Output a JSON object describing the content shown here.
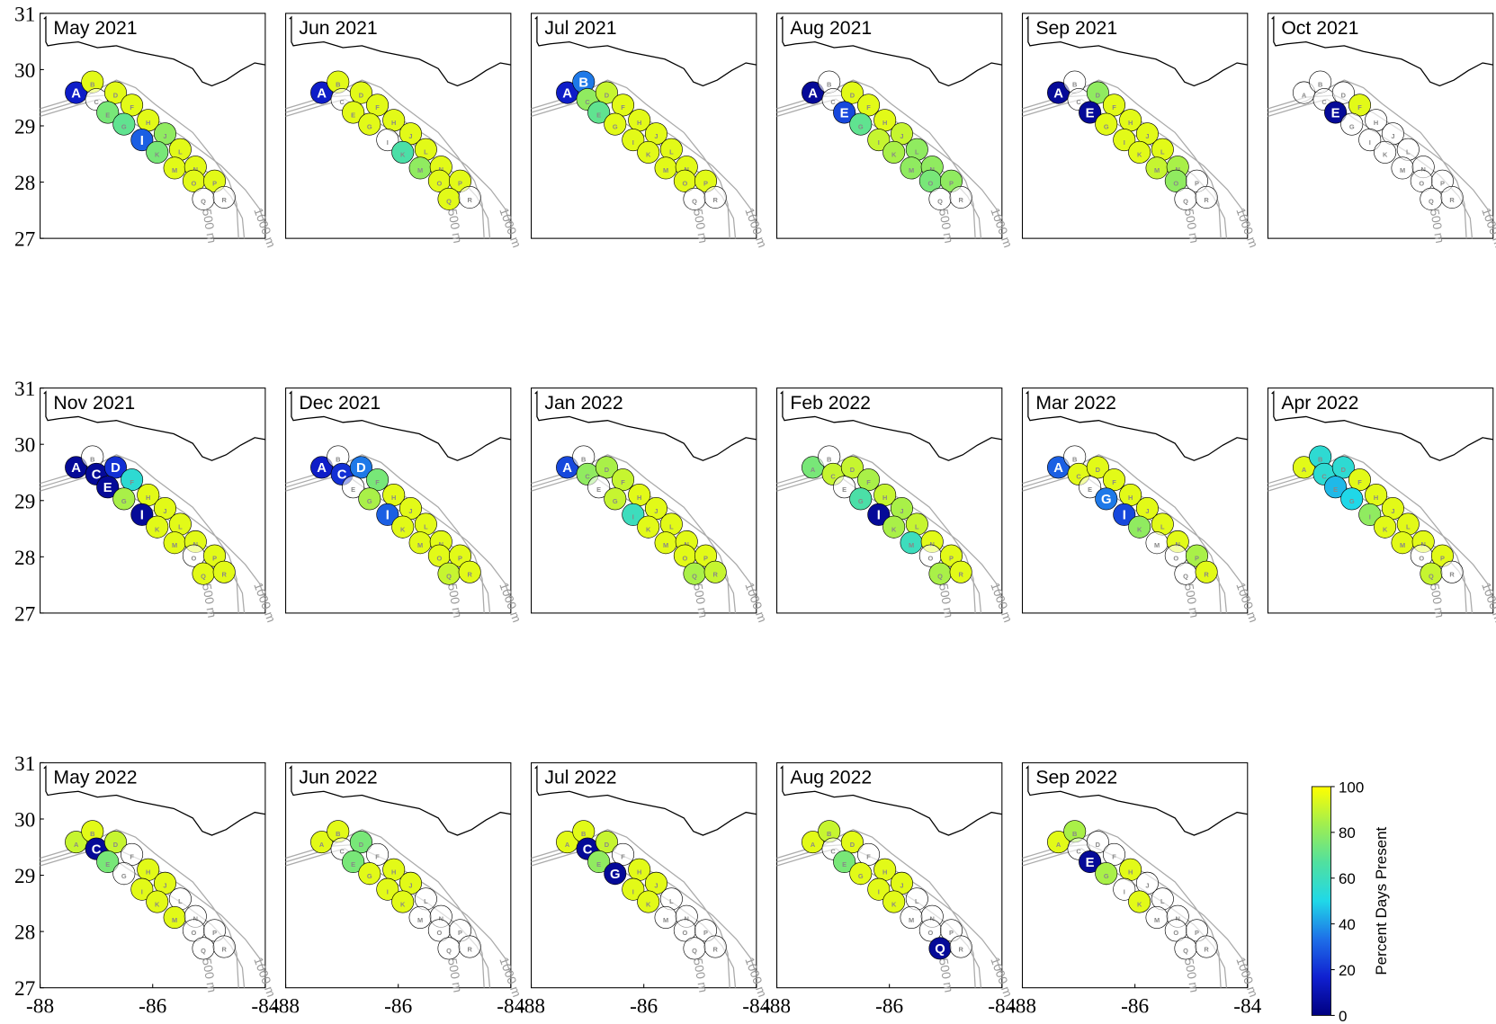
{
  "chart_data": {
    "type": "map",
    "xlim": [
      -88,
      -84
    ],
    "ylim": [
      27,
      31
    ],
    "xticks": [
      -88,
      -86,
      -84
    ],
    "yticks": [
      27,
      28,
      29,
      30,
      31
    ],
    "sites": [
      "A",
      "B",
      "C",
      "D",
      "E",
      "F",
      "G",
      "H",
      "I",
      "J",
      "K",
      "L",
      "M",
      "N",
      "O",
      "P",
      "Q",
      "R"
    ],
    "site_lons": [
      -87.36,
      -87.07,
      -87.0,
      -86.66,
      -86.8,
      -86.37,
      -86.51,
      -86.08,
      -86.19,
      -85.78,
      -85.92,
      -85.51,
      -85.61,
      -85.24,
      -85.27,
      -84.9,
      -85.1,
      -84.73
    ],
    "site_lats": [
      29.59,
      29.78,
      29.47,
      29.59,
      29.24,
      29.37,
      29.03,
      29.1,
      28.75,
      28.86,
      28.53,
      28.58,
      28.25,
      28.27,
      28.02,
      28.02,
      27.7,
      27.73
    ],
    "isobath_labels": [
      "500 m",
      "1000 m"
    ],
    "colormap": [
      "#000080",
      "#1020d0",
      "#1e6fe8",
      "#20d8e8",
      "#50e0a0",
      "#a0ee50",
      "#ffff00"
    ],
    "panels": [
      {
        "title": "May 2021",
        "values": [
          15,
          95,
          null,
          95,
          75,
          95,
          70,
          95,
          30,
          80,
          75,
          95,
          95,
          95,
          95,
          95,
          null,
          null
        ]
      },
      {
        "title": "Jun 2021",
        "values": [
          15,
          95,
          null,
          95,
          95,
          95,
          95,
          95,
          null,
          95,
          65,
          95,
          80,
          95,
          95,
          95,
          95,
          null
        ]
      },
      {
        "title": "Jul 2021",
        "values": [
          15,
          35,
          80,
          90,
          70,
          95,
          95,
          95,
          95,
          95,
          95,
          95,
          95,
          95,
          95,
          95,
          null,
          null
        ]
      },
      {
        "title": "Aug 2021",
        "values": [
          5,
          null,
          null,
          95,
          25,
          95,
          70,
          95,
          90,
          90,
          85,
          80,
          80,
          80,
          75,
          80,
          null,
          null
        ]
      },
      {
        "title": "Sep 2021",
        "values": [
          5,
          null,
          null,
          80,
          5,
          95,
          95,
          95,
          95,
          95,
          95,
          95,
          90,
          85,
          80,
          null,
          null,
          null
        ]
      },
      {
        "title": "Oct 2021",
        "values": [
          null,
          null,
          null,
          null,
          5,
          95,
          null,
          null,
          null,
          null,
          null,
          null,
          null,
          null,
          null,
          null,
          null,
          null
        ]
      },
      {
        "title": "Nov 2021",
        "values": [
          5,
          null,
          5,
          20,
          5,
          55,
          85,
          95,
          5,
          95,
          95,
          95,
          95,
          95,
          null,
          95,
          95,
          95
        ]
      },
      {
        "title": "Dec 2021",
        "values": [
          15,
          null,
          20,
          35,
          null,
          75,
          85,
          95,
          30,
          95,
          95,
          95,
          95,
          95,
          95,
          95,
          90,
          95
        ]
      },
      {
        "title": "Jan 2022",
        "values": [
          25,
          null,
          80,
          85,
          null,
          90,
          90,
          95,
          60,
          95,
          95,
          95,
          95,
          95,
          95,
          95,
          85,
          90
        ]
      },
      {
        "title": "Feb 2022",
        "values": [
          75,
          null,
          90,
          90,
          null,
          85,
          65,
          90,
          5,
          85,
          85,
          90,
          60,
          95,
          null,
          95,
          85,
          95
        ]
      },
      {
        "title": "Mar 2022",
        "values": [
          30,
          null,
          95,
          95,
          null,
          95,
          35,
          95,
          25,
          95,
          80,
          95,
          null,
          95,
          null,
          85,
          null,
          95
        ]
      },
      {
        "title": "Apr 2022",
        "values": [
          95,
          55,
          55,
          55,
          45,
          95,
          50,
          95,
          80,
          95,
          95,
          95,
          95,
          95,
          null,
          95,
          90,
          null
        ]
      },
      {
        "title": "May 2022",
        "values": [
          90,
          95,
          5,
          90,
          75,
          null,
          null,
          95,
          95,
          95,
          95,
          null,
          95,
          null,
          null,
          null,
          null,
          null
        ]
      },
      {
        "title": "Jun 2022",
        "values": [
          95,
          95,
          null,
          75,
          75,
          null,
          95,
          95,
          95,
          95,
          95,
          null,
          null,
          null,
          null,
          null,
          null,
          null
        ]
      },
      {
        "title": "Jul 2022",
        "values": [
          95,
          95,
          5,
          90,
          80,
          null,
          5,
          95,
          95,
          95,
          95,
          null,
          null,
          null,
          null,
          null,
          null,
          null
        ]
      },
      {
        "title": "Aug 2022",
        "values": [
          95,
          90,
          null,
          95,
          75,
          null,
          95,
          95,
          95,
          95,
          95,
          null,
          null,
          null,
          null,
          null,
          5,
          null
        ]
      },
      {
        "title": "Sep 2022",
        "values": [
          95,
          85,
          null,
          null,
          5,
          null,
          85,
          95,
          null,
          null,
          95,
          null,
          null,
          null,
          null,
          null,
          null,
          null
        ]
      }
    ],
    "colorbar": {
      "label": "Percent Days Present",
      "lim": [
        0,
        100
      ],
      "ticks": [
        0,
        20,
        40,
        60,
        80,
        100
      ]
    }
  }
}
